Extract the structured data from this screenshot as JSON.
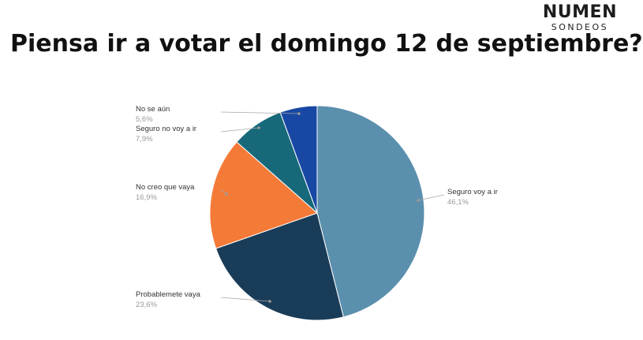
{
  "brand": {
    "name": "NUMEN",
    "sub": "SONDEOS"
  },
  "chart_data": {
    "type": "pie",
    "title": "Piensa ir a votar el domingo 12 de septiembre?",
    "slices": [
      {
        "label": "Seguro voy a ir",
        "value": 46.1,
        "display": "46,1%",
        "color": "#5b8fae"
      },
      {
        "label": "Probablemete vaya",
        "value": 23.6,
        "display": "23,6%",
        "color": "#193c58"
      },
      {
        "label": "No creo que vaya",
        "value": 16.9,
        "display": "16,9%",
        "color": "#f47a37"
      },
      {
        "label": "Seguro no voy a ir",
        "value": 7.9,
        "display": "7,9%",
        "color": "#17697a"
      },
      {
        "label": "No se aún",
        "value": 5.6,
        "display": "5,6%",
        "color": "#1848a4"
      }
    ],
    "start": "top",
    "direction": "clockwise"
  }
}
